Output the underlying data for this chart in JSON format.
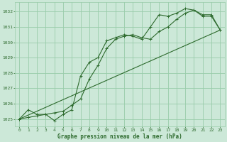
{
  "bg_color": "#cce8d8",
  "grid_color": "#99ccaa",
  "line_color": "#2d6a2d",
  "marker_color": "#2d6a2d",
  "xlabel": "Graphe pression niveau de la mer (hPa)",
  "xlim": [
    -0.5,
    23.5
  ],
  "ylim": [
    1024.5,
    1032.6
  ],
  "yticks": [
    1025,
    1026,
    1027,
    1028,
    1029,
    1030,
    1031,
    1032
  ],
  "xticks": [
    0,
    1,
    2,
    3,
    4,
    5,
    6,
    7,
    8,
    9,
    10,
    11,
    12,
    13,
    14,
    15,
    16,
    17,
    18,
    19,
    20,
    21,
    22,
    23
  ],
  "series1_x": [
    0,
    1,
    2,
    3,
    4,
    5,
    6,
    7,
    8,
    9,
    10,
    11,
    12,
    13,
    14,
    15,
    16,
    17,
    18,
    19,
    20,
    21,
    22,
    23
  ],
  "series1_y": [
    1025.0,
    1025.6,
    1025.3,
    1025.3,
    1024.9,
    1025.3,
    1025.6,
    1027.8,
    1028.7,
    1029.0,
    1030.1,
    1030.3,
    1030.5,
    1030.4,
    1030.2,
    1031.0,
    1031.8,
    1031.7,
    1031.9,
    1032.2,
    1032.1,
    1031.7,
    1031.7,
    1030.8
  ],
  "series2_x": [
    0,
    1,
    2,
    3,
    4,
    5,
    6,
    7,
    8,
    9,
    10,
    11,
    12,
    13,
    14,
    15,
    16,
    17,
    18,
    19,
    20,
    21,
    22,
    23
  ],
  "series2_y": [
    1025.0,
    1025.1,
    1025.2,
    1025.3,
    1025.4,
    1025.5,
    1025.9,
    1026.3,
    1027.6,
    1028.5,
    1029.6,
    1030.2,
    1030.4,
    1030.5,
    1030.3,
    1030.2,
    1030.7,
    1031.0,
    1031.5,
    1031.9,
    1032.1,
    1031.8,
    1031.8,
    1030.8
  ],
  "series3_x": [
    0,
    23
  ],
  "series3_y": [
    1025.0,
    1030.8
  ]
}
